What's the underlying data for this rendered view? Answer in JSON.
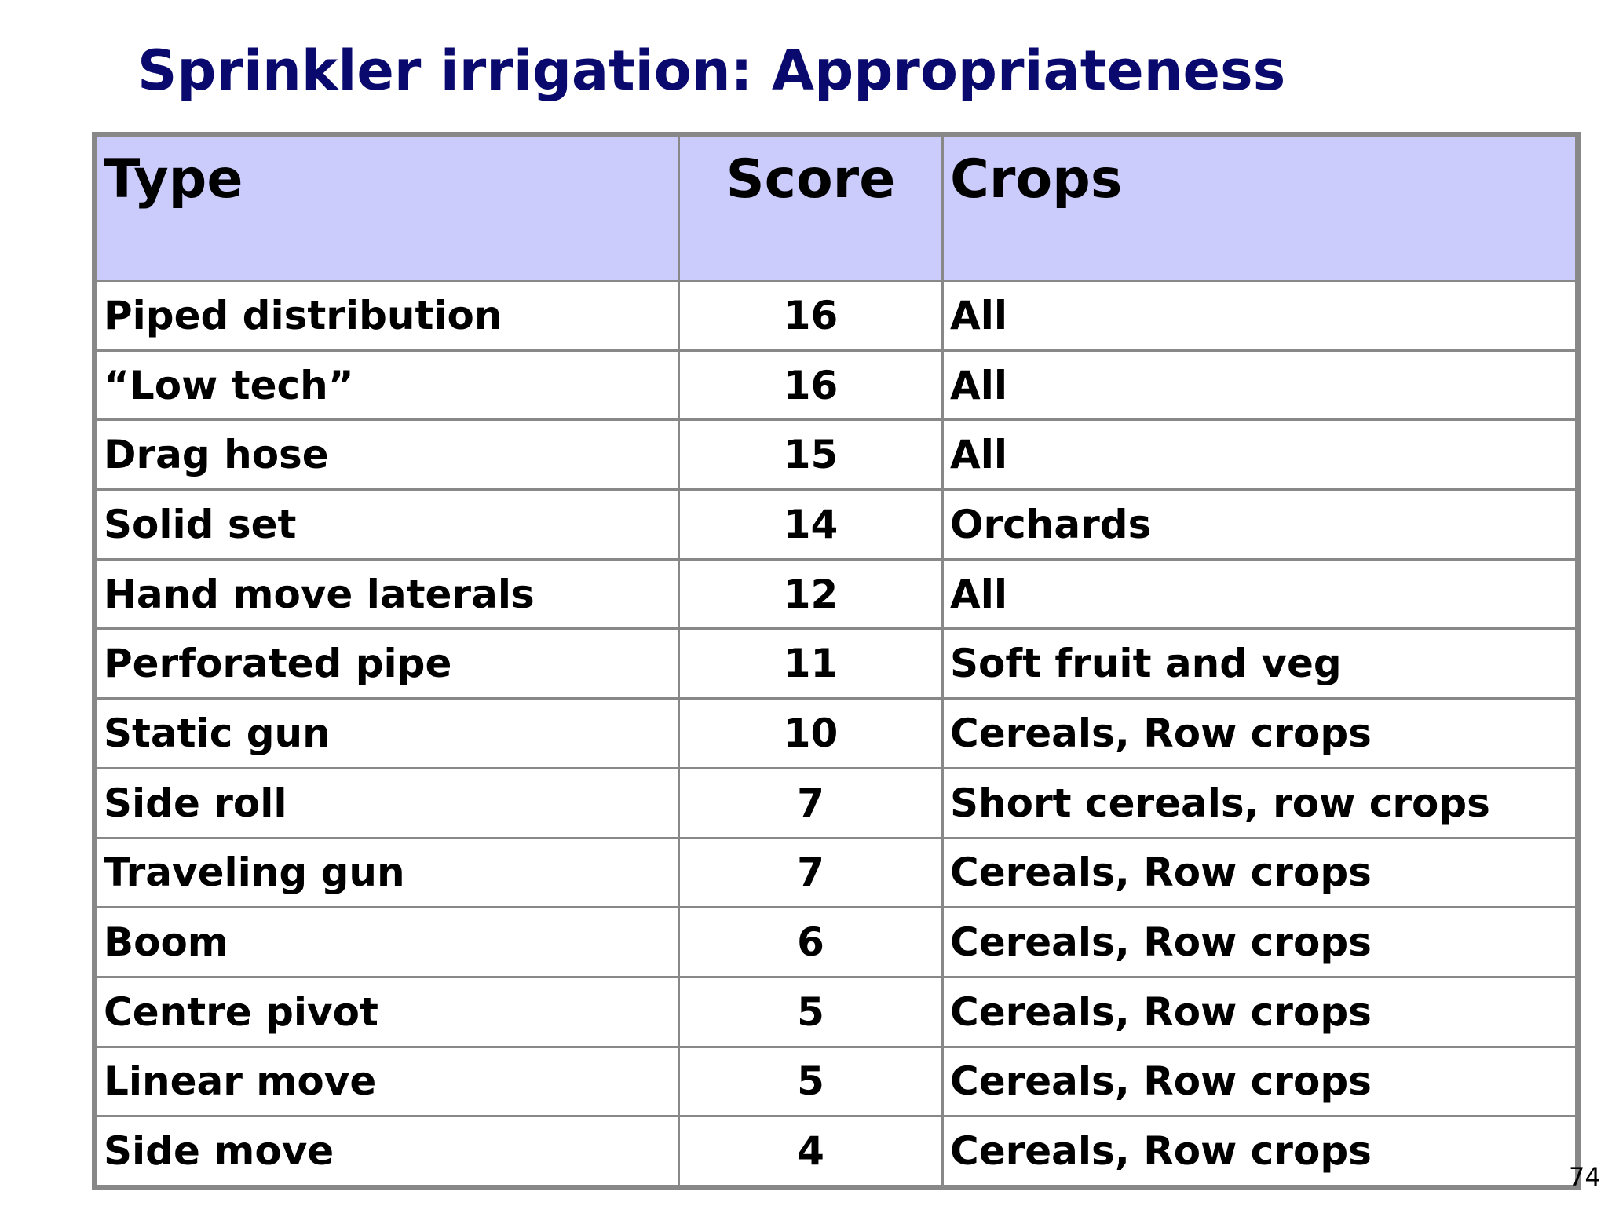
{
  "title": "Sprinkler irrigation: Appropriateness",
  "table": {
    "headers": {
      "type": "Type",
      "score": "Score",
      "crops": "Crops"
    },
    "rows": [
      {
        "type": "Piped distribution",
        "score": "16",
        "crops": "All"
      },
      {
        "type": "“Low tech”",
        "score": "16",
        "crops": "All"
      },
      {
        "type": "Drag hose",
        "score": "15",
        "crops": "All"
      },
      {
        "type": "Solid set",
        "score": "14",
        "crops": "Orchards"
      },
      {
        "type": "Hand move laterals",
        "score": "12",
        "crops": "All"
      },
      {
        "type": "Perforated pipe",
        "score": "11",
        "crops": "Soft fruit and veg"
      },
      {
        "type": "Static gun",
        "score": "10",
        "crops": "Cereals, Row crops"
      },
      {
        "type": "Side roll",
        "score": "7",
        "crops": "Short cereals, row crops"
      },
      {
        "type": "Traveling gun",
        "score": "7",
        "crops": "Cereals, Row crops"
      },
      {
        "type": "Boom",
        "score": "6",
        "crops": "Cereals, Row crops"
      },
      {
        "type": "Centre pivot",
        "score": "5",
        "crops": "Cereals, Row crops"
      },
      {
        "type": "Linear move",
        "score": "5",
        "crops": "Cereals, Row crops"
      },
      {
        "type": "Side move",
        "score": "4",
        "crops": "Cereals, Row crops"
      }
    ]
  },
  "page_number": "74",
  "colors": {
    "title": "#0a0a6e",
    "header_background": "#ccccfc",
    "grid_lines": "#888888"
  }
}
